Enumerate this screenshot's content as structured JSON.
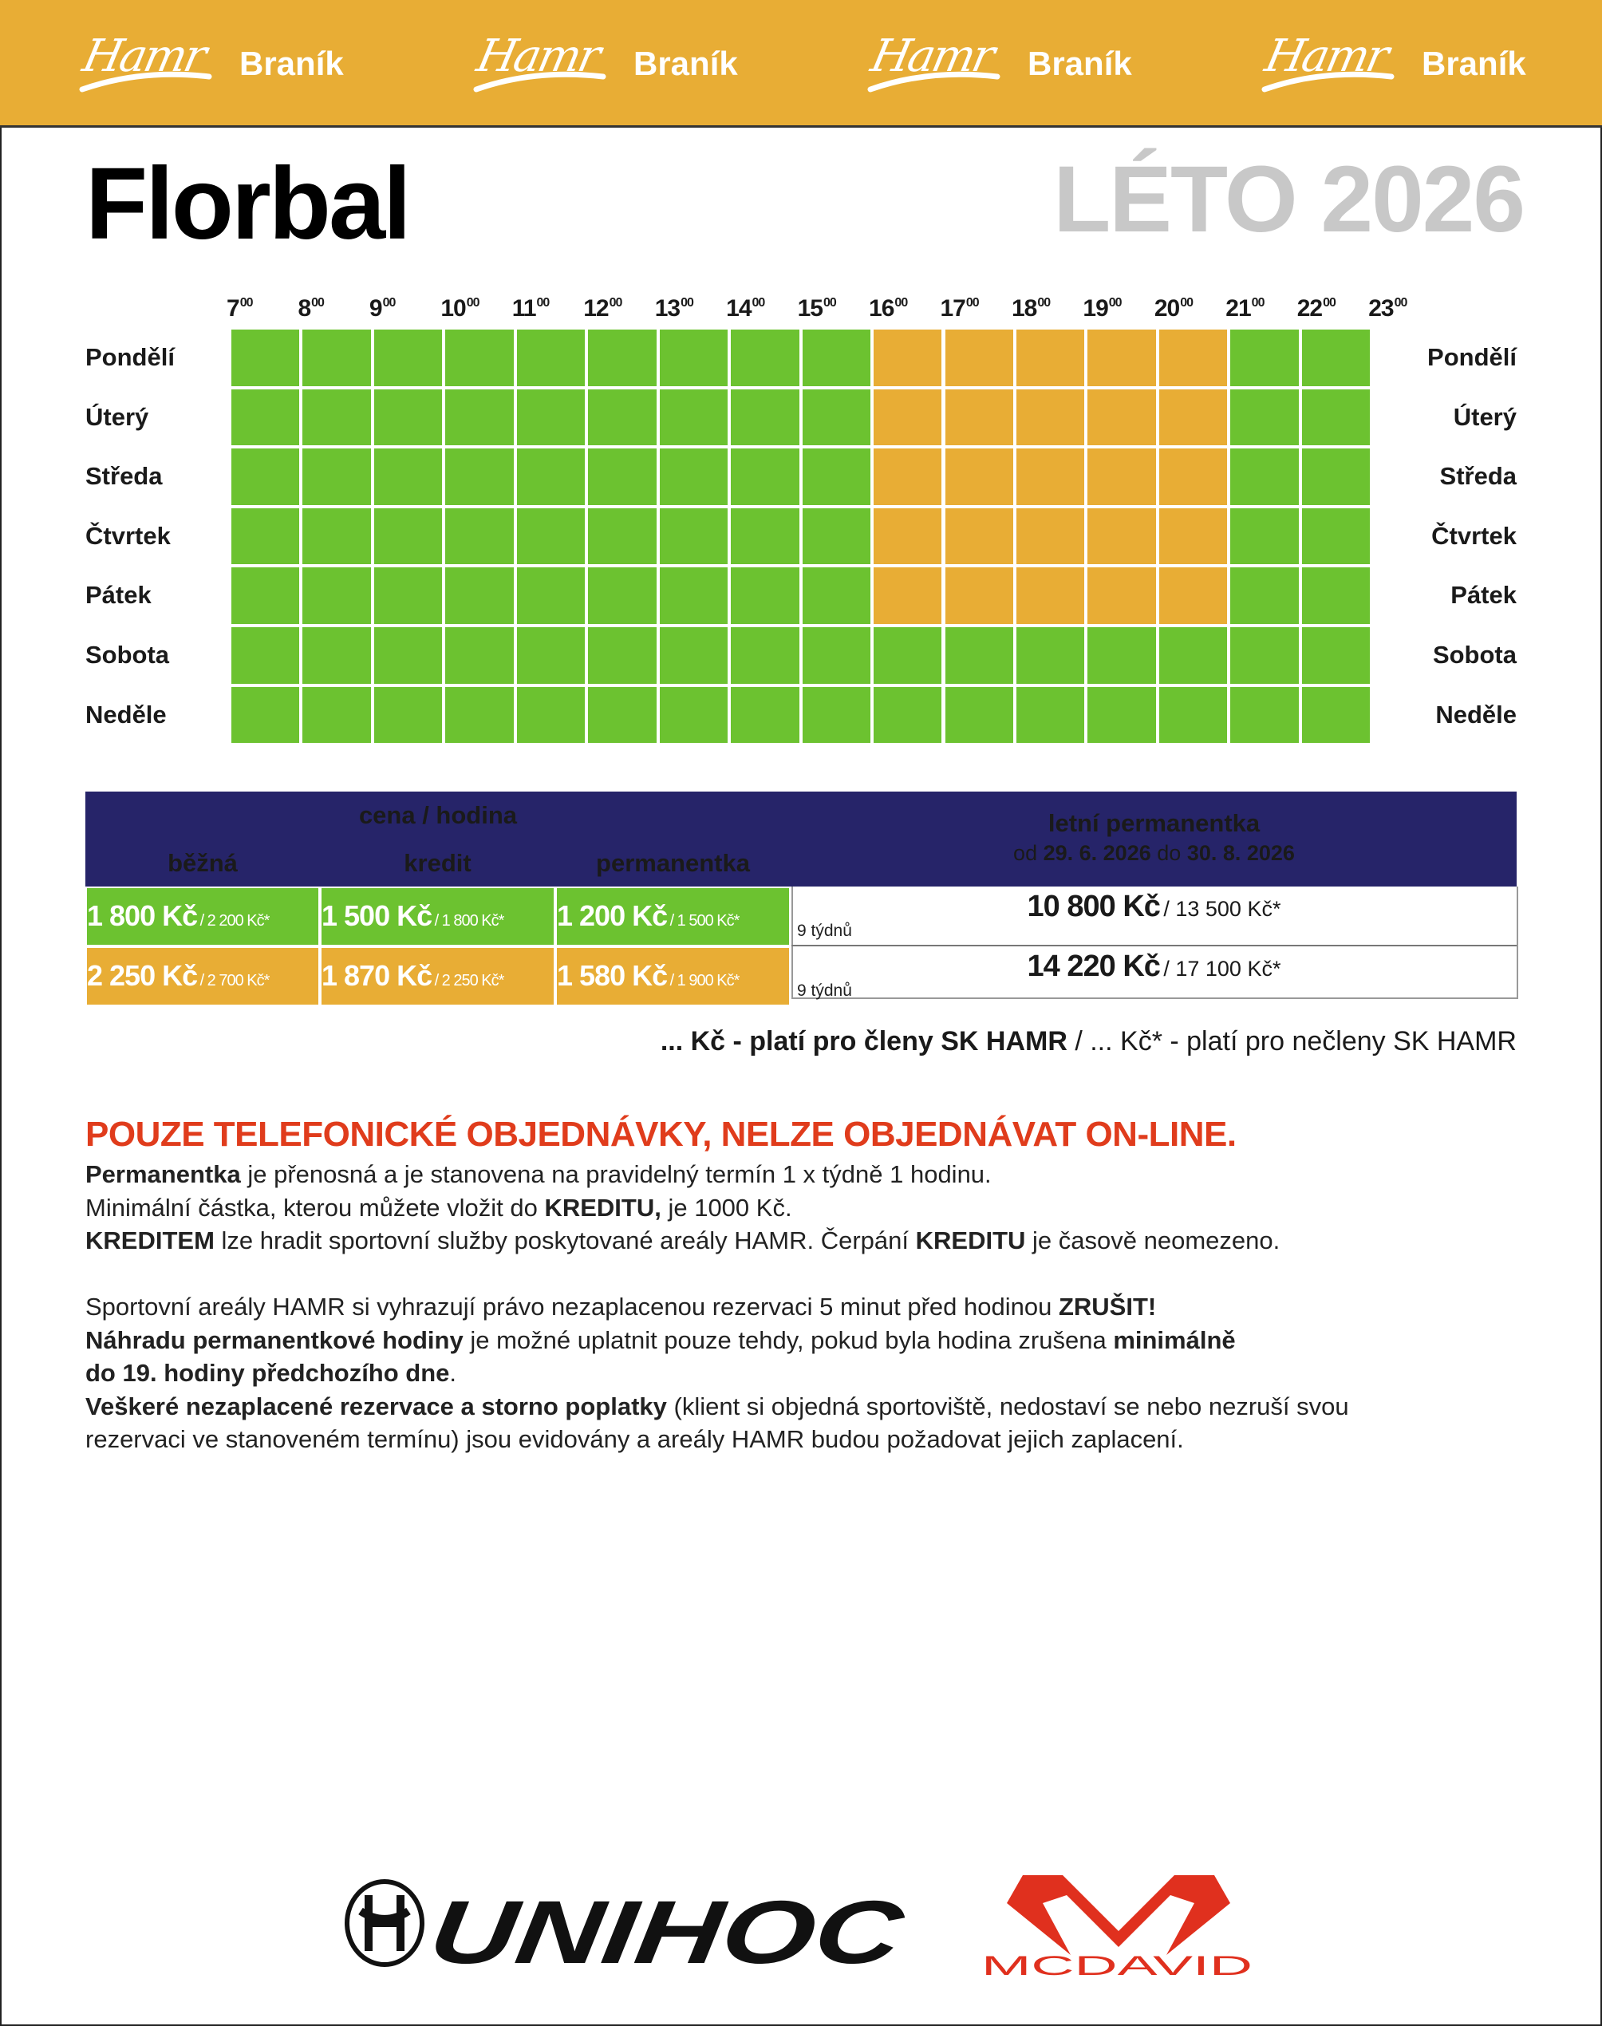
{
  "header": {
    "brand_logo_text": "Hamr",
    "brand_location": "Braník",
    "repeat_count": 4,
    "background_color": "#e8ad35"
  },
  "title": "Florbal",
  "season": "LÉTO 2026",
  "schedule": {
    "hours": [
      {
        "h": "7",
        "m": "00"
      },
      {
        "h": "8",
        "m": "00"
      },
      {
        "h": "9",
        "m": "00"
      },
      {
        "h": "10",
        "m": "00"
      },
      {
        "h": "11",
        "m": "00"
      },
      {
        "h": "12",
        "m": "00"
      },
      {
        "h": "13",
        "m": "00"
      },
      {
        "h": "14",
        "m": "00"
      },
      {
        "h": "15",
        "m": "00"
      },
      {
        "h": "16",
        "m": "00"
      },
      {
        "h": "17",
        "m": "00"
      },
      {
        "h": "18",
        "m": "00"
      },
      {
        "h": "19",
        "m": "00"
      },
      {
        "h": "20",
        "m": "00"
      },
      {
        "h": "21",
        "m": "00"
      },
      {
        "h": "22",
        "m": "00"
      },
      {
        "h": "23",
        "m": "00"
      }
    ],
    "days": [
      {
        "name": "Pondělí",
        "peak": true
      },
      {
        "name": "Úterý",
        "peak": true
      },
      {
        "name": "Středa",
        "peak": true
      },
      {
        "name": "Čtvrtek",
        "peak": true
      },
      {
        "name": "Pátek",
        "peak": true
      },
      {
        "name": "Sobota",
        "peak": false
      },
      {
        "name": "Neděle",
        "peak": false
      }
    ],
    "peak_hours": [
      16,
      17,
      18,
      19,
      20
    ],
    "colors": {
      "standard": "#6cc230",
      "peak": "#e8ad35"
    }
  },
  "prices": {
    "header_group": "cena / hodina",
    "columns": [
      "běžná",
      "kredit",
      "permanentka"
    ],
    "summer_pass": {
      "title": "letní permanentka",
      "from_label": "od",
      "from": "29. 6. 2026",
      "to_label": "do",
      "to": "30. 8. 2026"
    },
    "rows": [
      {
        "tier": "standard",
        "color": "#6cc230",
        "cells": [
          {
            "member": "1 800 Kč",
            "nonmember": "/ 2 200 Kč*"
          },
          {
            "member": "1 500 Kč",
            "nonmember": "/ 1 800 Kč*"
          },
          {
            "member": "1 200 Kč",
            "nonmember": "/ 1 500 Kč*"
          }
        ],
        "weeks": "9 týdnů",
        "pass_member": "10 800 Kč",
        "pass_nonmember": "/ 13 500 Kč*"
      },
      {
        "tier": "peak",
        "color": "#e8ad35",
        "cells": [
          {
            "member": "2 250 Kč",
            "nonmember": "/ 2 700 Kč*"
          },
          {
            "member": "1 870 Kč",
            "nonmember": "/ 2 250 Kč*"
          },
          {
            "member": "1 580 Kč",
            "nonmember": "/ 1 900 Kč*"
          }
        ],
        "weeks": "9 týdnů",
        "pass_member": "14 220 Kč",
        "pass_nonmember": "/ 17 100 Kč*"
      }
    ],
    "note_members": "... Kč - platí pro členy SK HAMR",
    "note_sep": " / ",
    "note_nonmembers": "... Kč* - platí pro nečleny SK HAMR"
  },
  "notice": "POUZE TELEFONICKÉ OBJEDNÁVKY, NELZE OBJEDNÁVAT ON-LINE.",
  "info": {
    "l1_b": "Permanentka",
    "l1": " je přenosná a je stanovena na pravidelný termín 1 x týdně 1 hodinu.",
    "l2": "Minimální částka, kterou můžete vložit do ",
    "l2_b": "KREDITU,",
    "l2_end": " je 1000 Kč.",
    "l3_b": "KREDITEM",
    "l3": " lze hradit sportovní služby poskytované areály HAMR. Čerpání ",
    "l3_b2": "KREDITU",
    "l3_end": " je časově neomezeno.",
    "l4": "Sportovní areály HAMR si vyhrazují právo nezaplacenou rezervaci 5 minut před hodinou ",
    "l4_b": "ZRUŠIT!",
    "l5_b": "Náhradu permanentkové hodiny",
    "l5": " je možné uplatnit pouze tehdy, pokud byla hodina zrušena ",
    "l5_b2": "minimálně",
    "l6_b": "do 19. hodiny předchozího dne",
    "l6": ".",
    "l7_b": "Veškeré nezaplacené rezervace a storno poplatky",
    "l7": " (klient si objedná sportoviště, nedostaví se nebo nezruší svou",
    "l8": "rezervaci ve stanoveném termínu) jsou evidovány a areály HAMR budou požadovat jejich zaplacení."
  },
  "sponsors": {
    "unihoc": "UNIHOC",
    "mcdavid": "MCDAVID"
  }
}
